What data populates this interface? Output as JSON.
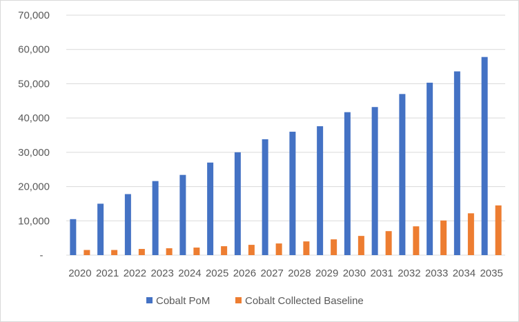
{
  "chart_data": {
    "type": "bar",
    "title": "",
    "xlabel": "",
    "ylabel": "",
    "ylim": [
      0,
      70000
    ],
    "yticks": [
      0,
      10000,
      20000,
      30000,
      40000,
      50000,
      60000,
      70000
    ],
    "ytick_labels": [
      "-",
      "10,000",
      "20,000",
      "30,000",
      "40,000",
      "50,000",
      "60,000",
      "70,000"
    ],
    "grid": true,
    "legend_position": "bottom",
    "categories": [
      "2020",
      "2021",
      "2022",
      "2023",
      "2024",
      "2025",
      "2026",
      "2027",
      "2028",
      "2029",
      "2030",
      "2031",
      "2032",
      "2033",
      "2034",
      "2035"
    ],
    "series": [
      {
        "name": "Cobalt PoM",
        "color": "#4472C4",
        "values": [
          10500,
          15000,
          17800,
          21600,
          23400,
          27000,
          30000,
          33800,
          36000,
          37600,
          41700,
          43200,
          47000,
          50300,
          53600,
          57800
        ]
      },
      {
        "name": "Cobalt Collected Baseline",
        "color": "#ED7D31",
        "values": [
          1500,
          1500,
          1800,
          2000,
          2200,
          2600,
          3000,
          3400,
          4000,
          4600,
          5600,
          7000,
          8400,
          10100,
          12200,
          14500
        ]
      }
    ]
  }
}
